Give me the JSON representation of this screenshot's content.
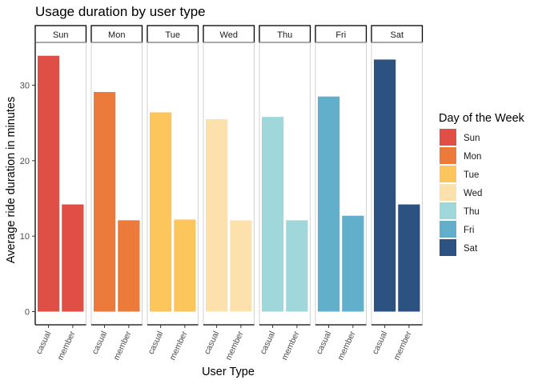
{
  "chart_data": {
    "type": "bar",
    "title": "Usage duration by user type",
    "xlabel": "User Type",
    "ylabel": "Average ride duration in minutes",
    "ylim": [
      0,
      35
    ],
    "yticks": [
      0,
      10,
      20,
      30
    ],
    "categories": [
      "casual",
      "member"
    ],
    "facets": [
      {
        "label": "Sun",
        "values": [
          33.9,
          14.2
        ],
        "color": "#E04F45"
      },
      {
        "label": "Mon",
        "values": [
          29.1,
          12.1
        ],
        "color": "#EC7A3A"
      },
      {
        "label": "Tue",
        "values": [
          26.4,
          12.2
        ],
        "color": "#FDC65D"
      },
      {
        "label": "Wed",
        "values": [
          25.5,
          12.1
        ],
        "color": "#FDE1AC"
      },
      {
        "label": "Thu",
        "values": [
          25.8,
          12.1
        ],
        "color": "#A0D7DB"
      },
      {
        "label": "Fri",
        "values": [
          28.5,
          12.7
        ],
        "color": "#62AFCB"
      },
      {
        "label": "Sat",
        "values": [
          33.4,
          14.2
        ],
        "color": "#2C5282"
      }
    ],
    "legend": {
      "title": "Day of the Week",
      "placement": "right",
      "items": [
        "Sun",
        "Mon",
        "Tue",
        "Wed",
        "Thu",
        "Fri",
        "Sat"
      ]
    },
    "grid": false
  }
}
